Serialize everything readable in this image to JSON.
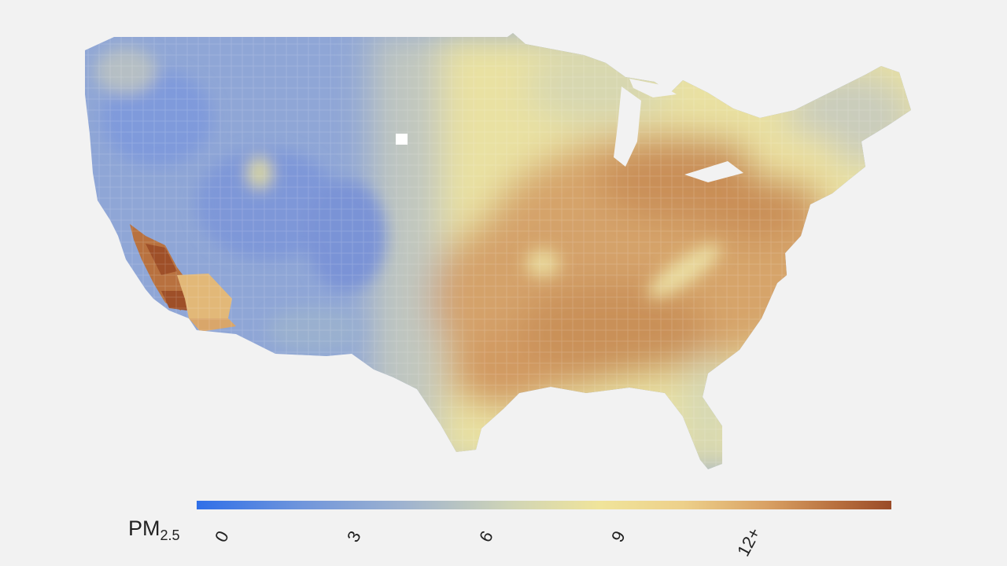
{
  "legend": {
    "label_main": "PM",
    "label_sub": "2.5",
    "colors": [
      "#2f6fe8",
      "#6f95dc",
      "#9fb3cf",
      "#cfd4b6",
      "#f0e49a",
      "#edd08a",
      "#d9a164",
      "#b8703e",
      "#9a4b28"
    ],
    "ticks": [
      "0",
      "3",
      "6",
      "9",
      "12+"
    ]
  },
  "palette": {
    "background": "#f2f2f2",
    "low": "#7f9fdc",
    "mid_low": "#a9b8cf",
    "mid": "#e3df9e",
    "mid_high": "#e2b878",
    "high": "#c6884f",
    "very_high": "#a45a2f"
  }
}
